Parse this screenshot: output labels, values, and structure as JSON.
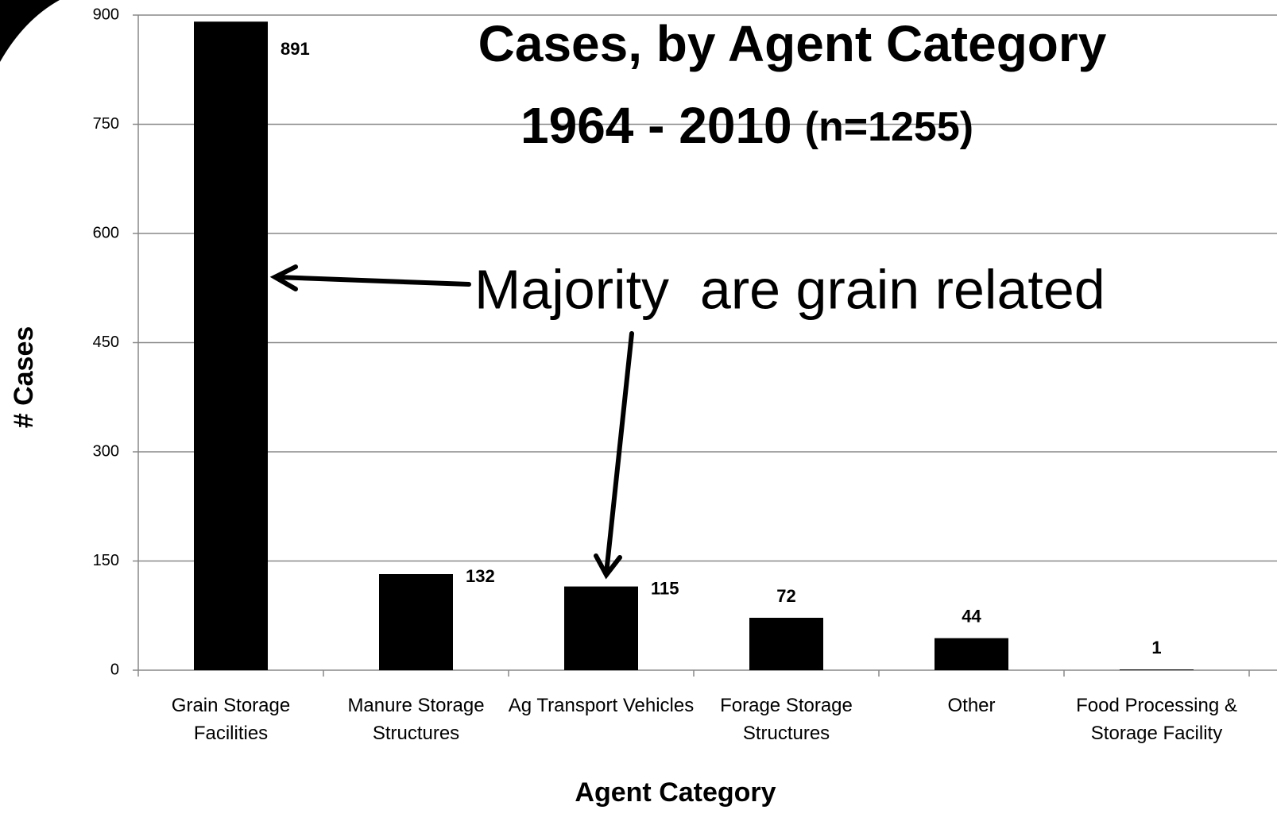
{
  "chart_data": {
    "type": "bar",
    "title": "Cases, by Agent Category",
    "subtitle": "1964 - 2010",
    "note": "(n=1255)",
    "annotation": "Majority  are grain related",
    "xlabel": "Agent Category",
    "ylabel": "# Cases",
    "categories": [
      "Grain Storage Facilities",
      "Manure Storage Structures",
      "Ag Transport Vehicles",
      "Forage Storage Structures",
      "Other",
      "Food Processing & Storage Facility"
    ],
    "values": [
      891,
      132,
      115,
      72,
      44,
      1
    ],
    "color": "#000000",
    "ylim": [
      0,
      900
    ],
    "yticks": [
      0,
      150,
      300,
      450,
      600,
      750,
      900
    ],
    "grid": true
  }
}
